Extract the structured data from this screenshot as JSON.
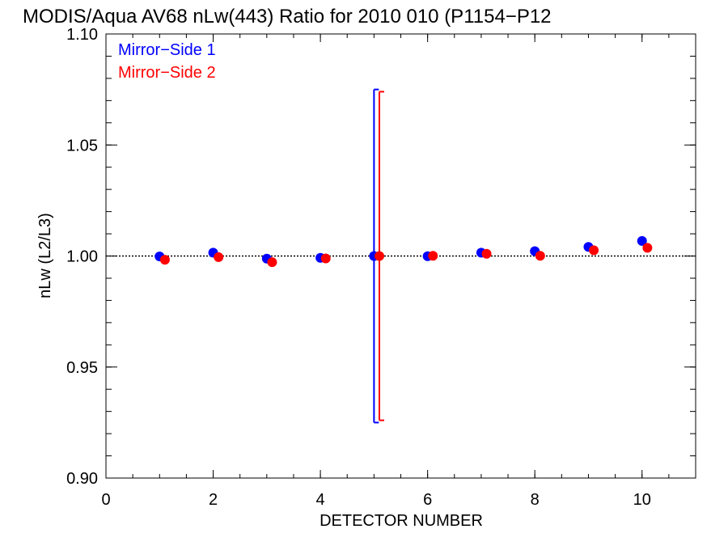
{
  "chart_data": {
    "type": "scatter",
    "title": "MODIS/Aqua AV68 nLw(443) Ratio for 2010 010 (P1154−P12",
    "xlabel": "DETECTOR NUMBER",
    "ylabel": "nLw (L2/L3)",
    "xlim": [
      0,
      11
    ],
    "ylim": [
      0.9,
      1.1
    ],
    "xticks": [
      0,
      2,
      4,
      6,
      8,
      10
    ],
    "xtick_labels": [
      "0",
      "2",
      "4",
      "6",
      "8",
      "10"
    ],
    "yticks": [
      0.9,
      0.95,
      1.0,
      1.05,
      1.1
    ],
    "ytick_labels": [
      "0.90",
      "0.95",
      "1.00",
      "1.05",
      "1.10"
    ],
    "x_minor_step": 0.5,
    "y_minor_step": 0.01,
    "reference_line": 1.0,
    "grid": false,
    "legend_position": "top-left",
    "series": [
      {
        "name": "Mirror−Side 1",
        "color": "#0000ff",
        "x": [
          1,
          2,
          3,
          4,
          5,
          6,
          7,
          8,
          9,
          10
        ],
        "y": [
          0.9998,
          1.0015,
          0.9988,
          0.9992,
          1.0,
          0.9999,
          1.0015,
          1.0022,
          1.0041,
          1.0068
        ],
        "error_bars": [
          {
            "x": 5,
            "low": 0.925,
            "high": 1.075
          }
        ]
      },
      {
        "name": "Mirror−Side 2",
        "color": "#ff0000",
        "x": [
          1.1,
          2.1,
          3.1,
          4.1,
          5.1,
          6.1,
          7.1,
          8.1,
          9.1,
          10.1
        ],
        "y": [
          0.9983,
          0.9995,
          0.9972,
          0.9989,
          1.0,
          1.0001,
          1.001,
          1.0001,
          1.0026,
          1.0037
        ],
        "error_bars": [
          {
            "x": 5.1,
            "low": 0.926,
            "high": 1.074
          }
        ]
      }
    ]
  }
}
